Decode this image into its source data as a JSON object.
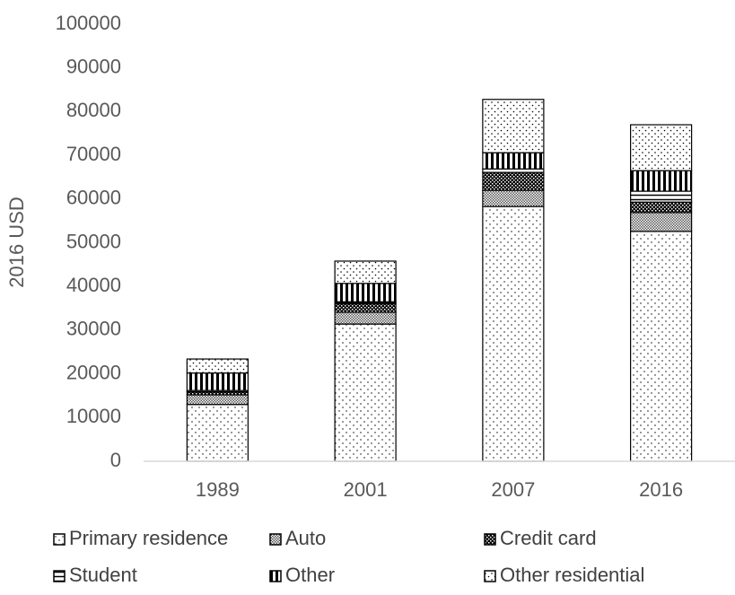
{
  "chart_data": {
    "type": "stacked_bar",
    "y_label": "2016 USD",
    "categories": [
      "1989",
      "2001",
      "2007",
      "2016"
    ],
    "series": [
      {
        "name": "Primary residence",
        "color": "#000000",
        "values": [
          13000,
          31400,
          58300,
          52600
        ]
      },
      {
        "name": "Auto",
        "color": "#000000",
        "values": [
          2200,
          2700,
          3700,
          4300
        ]
      },
      {
        "name": "Credit card",
        "color": "#000000",
        "values": [
          700,
          2000,
          4100,
          2400
        ]
      },
      {
        "name": "Student",
        "color": "#000000",
        "values": [
          300,
          400,
          800,
          2500
        ]
      },
      {
        "name": "Other",
        "color": "#000000",
        "values": [
          4000,
          4200,
          3700,
          4700
        ]
      },
      {
        "name": "Other residential",
        "color": "#000000",
        "values": [
          3200,
          5100,
          12200,
          10500
        ]
      }
    ],
    "ylim": [
      0,
      100000
    ],
    "yticks": [
      0,
      10000,
      20000,
      30000,
      40000,
      50000,
      60000,
      70000,
      80000,
      90000,
      100000
    ],
    "grid": false,
    "legend": "bottom"
  }
}
